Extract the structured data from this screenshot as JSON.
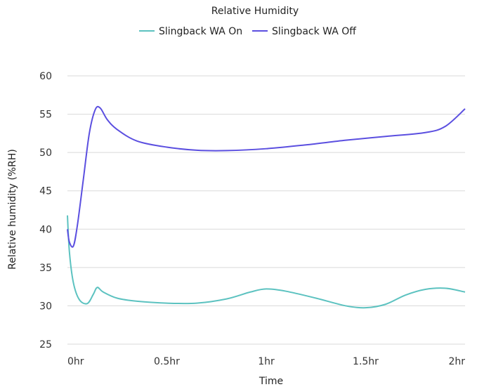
{
  "chart_data": {
    "type": "line",
    "title": "Relative Humidity",
    "xlabel": "Time",
    "ylabel": "Relative humidity (%RH)",
    "ylim": [
      25,
      60
    ],
    "yticks": [
      "25",
      "30",
      "35",
      "40",
      "45",
      "50",
      "55",
      "60"
    ],
    "xlim": [
      0,
      2
    ],
    "xticks": [
      {
        "value": 0,
        "label": "0hr"
      },
      {
        "value": 0.5,
        "label": "0.5hr"
      },
      {
        "value": 1,
        "label": "1hr"
      },
      {
        "value": 1.5,
        "label": "1.5hr"
      },
      {
        "value": 2,
        "label": "2hr"
      }
    ],
    "grid": "horizontal",
    "legend_position": "top",
    "series": [
      {
        "name": "Slingback WA On",
        "color": "#5cc2c0",
        "points": [
          [
            0,
            41.8
          ],
          [
            0.01,
            37
          ],
          [
            0.03,
            33
          ],
          [
            0.06,
            30.8
          ],
          [
            0.1,
            30.3
          ],
          [
            0.13,
            31.5
          ],
          [
            0.15,
            32.4
          ],
          [
            0.18,
            31.8
          ],
          [
            0.25,
            31.0
          ],
          [
            0.35,
            30.6
          ],
          [
            0.5,
            30.35
          ],
          [
            0.65,
            30.35
          ],
          [
            0.8,
            30.9
          ],
          [
            0.92,
            31.8
          ],
          [
            1.0,
            32.2
          ],
          [
            1.1,
            31.9
          ],
          [
            1.25,
            31.0
          ],
          [
            1.4,
            30.0
          ],
          [
            1.5,
            29.75
          ],
          [
            1.6,
            30.2
          ],
          [
            1.7,
            31.4
          ],
          [
            1.8,
            32.15
          ],
          [
            1.9,
            32.3
          ],
          [
            2.0,
            31.8
          ]
        ]
      },
      {
        "name": "Slingback WA Off",
        "color": "#5b4fe0",
        "points": [
          [
            0,
            40.0
          ],
          [
            0.01,
            38.3
          ],
          [
            0.03,
            37.8
          ],
          [
            0.05,
            40.5
          ],
          [
            0.08,
            46.5
          ],
          [
            0.11,
            52.5
          ],
          [
            0.14,
            55.6
          ],
          [
            0.165,
            55.8
          ],
          [
            0.2,
            54.3
          ],
          [
            0.25,
            53.0
          ],
          [
            0.35,
            51.5
          ],
          [
            0.5,
            50.7
          ],
          [
            0.65,
            50.3
          ],
          [
            0.8,
            50.25
          ],
          [
            1.0,
            50.5
          ],
          [
            1.2,
            51.0
          ],
          [
            1.4,
            51.6
          ],
          [
            1.6,
            52.1
          ],
          [
            1.8,
            52.6
          ],
          [
            1.9,
            53.4
          ],
          [
            2.0,
            55.7
          ]
        ]
      }
    ]
  }
}
